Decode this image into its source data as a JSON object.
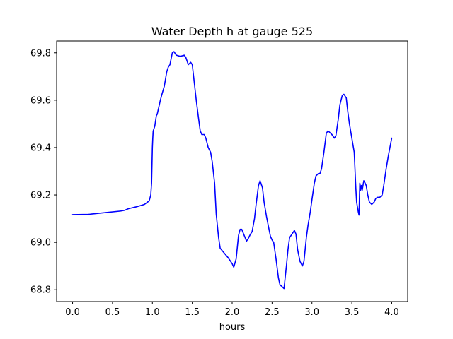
{
  "chart_data": {
    "type": "line",
    "title": "Water Depth h at gauge 525",
    "xlabel": "hours",
    "ylabel": "",
    "xlim": [
      -0.2,
      4.2
    ],
    "ylim": [
      68.75,
      69.85
    ],
    "xticks": [
      0.0,
      0.5,
      1.0,
      1.5,
      2.0,
      2.5,
      3.0,
      3.5,
      4.0
    ],
    "xtick_labels": [
      "0.0",
      "0.5",
      "1.0",
      "1.5",
      "2.0",
      "2.5",
      "3.0",
      "3.5",
      "4.0"
    ],
    "yticks": [
      68.8,
      69.0,
      69.2,
      69.4,
      69.6,
      69.8
    ],
    "ytick_labels": [
      "68.8",
      "69.0",
      "69.2",
      "69.4",
      "69.6",
      "69.8"
    ],
    "grid": false,
    "series": [
      {
        "color": "#0000ff",
        "x": [
          0.0,
          0.2,
          0.4,
          0.6,
          0.65,
          0.7,
          0.8,
          0.9,
          0.96,
          0.98,
          0.99,
          1.0,
          1.005,
          1.01,
          1.03,
          1.05,
          1.06,
          1.08,
          1.1,
          1.12,
          1.15,
          1.18,
          1.2,
          1.22,
          1.25,
          1.27,
          1.3,
          1.35,
          1.4,
          1.42,
          1.45,
          1.48,
          1.5,
          1.52,
          1.55,
          1.58,
          1.6,
          1.62,
          1.65,
          1.67,
          1.7,
          1.73,
          1.75,
          1.78,
          1.8,
          1.83,
          1.85,
          1.9,
          1.95,
          2.0,
          2.02,
          2.05,
          2.08,
          2.1,
          2.12,
          2.15,
          2.18,
          2.2,
          2.23,
          2.25,
          2.28,
          2.3,
          2.33,
          2.35,
          2.38,
          2.4,
          2.43,
          2.45,
          2.48,
          2.5,
          2.52,
          2.55,
          2.58,
          2.6,
          2.62,
          2.65,
          2.68,
          2.7,
          2.72,
          2.75,
          2.78,
          2.8,
          2.82,
          2.85,
          2.88,
          2.9,
          2.93,
          2.95,
          2.98,
          3.0,
          3.03,
          3.05,
          3.08,
          3.1,
          3.12,
          3.15,
          3.18,
          3.2,
          3.22,
          3.25,
          3.28,
          3.3,
          3.33,
          3.35,
          3.38,
          3.4,
          3.43,
          3.45,
          3.47,
          3.5,
          3.53,
          3.55,
          3.555,
          3.56,
          3.58,
          3.59,
          3.6,
          3.605,
          3.61,
          3.62,
          3.63,
          3.64,
          3.65,
          3.66,
          3.68,
          3.7,
          3.72,
          3.75,
          3.78,
          3.8,
          3.82,
          3.85,
          3.88,
          3.9,
          3.93,
          3.96,
          4.0
        ],
        "y": [
          69.117,
          69.118,
          69.125,
          69.132,
          69.135,
          69.142,
          69.15,
          69.16,
          69.175,
          69.2,
          69.25,
          69.4,
          69.44,
          69.47,
          69.49,
          69.535,
          69.54,
          69.57,
          69.6,
          69.625,
          69.66,
          69.72,
          69.74,
          69.75,
          69.8,
          69.805,
          69.79,
          69.785,
          69.79,
          69.78,
          69.75,
          69.76,
          69.75,
          69.69,
          69.6,
          69.52,
          69.47,
          69.455,
          69.455,
          69.44,
          69.4,
          69.38,
          69.34,
          69.25,
          69.12,
          69.02,
          68.975,
          68.955,
          68.935,
          68.91,
          68.895,
          68.93,
          69.03,
          69.055,
          69.055,
          69.03,
          69.005,
          69.015,
          69.035,
          69.045,
          69.1,
          69.16,
          69.24,
          69.26,
          69.23,
          69.17,
          69.11,
          69.075,
          69.025,
          69.01,
          69.0,
          68.93,
          68.85,
          68.82,
          68.815,
          68.805,
          68.9,
          68.97,
          69.02,
          69.035,
          69.05,
          69.035,
          68.97,
          68.92,
          68.9,
          68.92,
          69.02,
          69.07,
          69.13,
          69.18,
          69.25,
          69.28,
          69.29,
          69.29,
          69.31,
          69.38,
          69.46,
          69.47,
          69.465,
          69.455,
          69.44,
          69.45,
          69.52,
          69.58,
          69.62,
          69.625,
          69.61,
          69.55,
          69.5,
          69.44,
          69.38,
          69.23,
          69.2,
          69.17,
          69.13,
          69.115,
          69.25,
          69.24,
          69.22,
          69.24,
          69.22,
          69.24,
          69.26,
          69.255,
          69.24,
          69.2,
          69.17,
          69.16,
          69.17,
          69.185,
          69.19,
          69.19,
          69.2,
          69.24,
          69.31,
          69.37,
          69.44
        ]
      }
    ]
  }
}
